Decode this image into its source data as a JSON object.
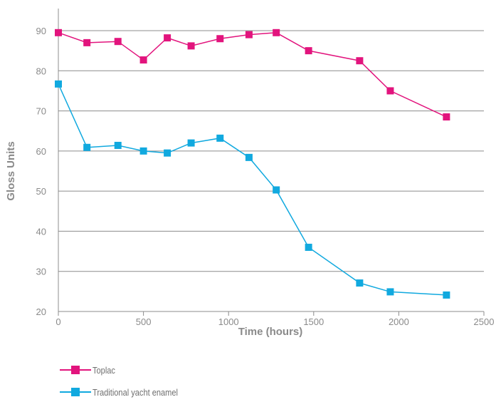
{
  "chart_data": {
    "type": "line",
    "title": "",
    "xlabel": "Time (hours)",
    "ylabel": "Gloss Units",
    "xlim": [
      0,
      2500
    ],
    "ylim": [
      20,
      95
    ],
    "xticks": [
      0,
      500,
      1000,
      1500,
      2000,
      2500
    ],
    "yticks": [
      20,
      30,
      40,
      50,
      60,
      70,
      80,
      90
    ],
    "grid": "horizontal",
    "legend_position": "bottom-left",
    "series": [
      {
        "name": "Toplac",
        "color": "#e2147d",
        "x": [
          0,
          168,
          350,
          500,
          640,
          780,
          950,
          1120,
          1280,
          1470,
          1770,
          1950,
          2280
        ],
        "y": [
          89.5,
          87.0,
          87.3,
          82.7,
          88.2,
          86.2,
          88.0,
          89.0,
          89.5,
          85.0,
          82.5,
          75.0,
          68.5
        ]
      },
      {
        "name": "Traditional yacht enamel",
        "color": "#11a9df",
        "x": [
          0,
          168,
          350,
          500,
          640,
          780,
          950,
          1120,
          1280,
          1470,
          1770,
          1950,
          2280
        ],
        "y": [
          76.7,
          60.9,
          61.4,
          60.0,
          59.5,
          62.0,
          63.2,
          58.4,
          50.3,
          36.0,
          27.1,
          24.9,
          24.1
        ]
      }
    ]
  }
}
